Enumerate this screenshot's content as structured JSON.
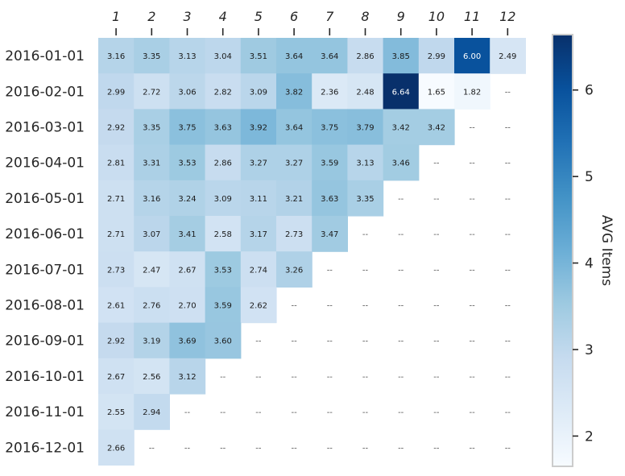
{
  "chart_data": {
    "type": "heatmap",
    "x_categories": [
      "1",
      "2",
      "3",
      "4",
      "5",
      "6",
      "7",
      "8",
      "9",
      "10",
      "11",
      "12"
    ],
    "y_categories": [
      "2016-01-01",
      "2016-02-01",
      "2016-03-01",
      "2016-04-01",
      "2016-05-01",
      "2016-06-01",
      "2016-07-01",
      "2016-08-01",
      "2016-09-01",
      "2016-10-01",
      "2016-11-01",
      "2016-12-01"
    ],
    "values": [
      [
        3.16,
        3.35,
        3.13,
        3.04,
        3.51,
        3.64,
        3.64,
        2.86,
        3.85,
        2.99,
        6.0,
        2.49
      ],
      [
        2.99,
        2.72,
        3.06,
        2.82,
        3.09,
        3.82,
        2.36,
        2.48,
        6.64,
        1.65,
        1.82,
        null
      ],
      [
        2.92,
        3.35,
        3.75,
        3.63,
        3.92,
        3.64,
        3.75,
        3.79,
        3.42,
        3.42,
        null,
        null
      ],
      [
        2.81,
        3.31,
        3.53,
        2.86,
        3.27,
        3.27,
        3.59,
        3.13,
        3.46,
        null,
        null,
        null
      ],
      [
        2.71,
        3.16,
        3.24,
        3.09,
        3.11,
        3.21,
        3.63,
        3.35,
        null,
        null,
        null,
        null
      ],
      [
        2.71,
        3.07,
        3.41,
        2.58,
        3.17,
        2.73,
        3.47,
        null,
        null,
        null,
        null,
        null
      ],
      [
        2.73,
        2.47,
        2.67,
        3.53,
        2.74,
        3.26,
        null,
        null,
        null,
        null,
        null,
        null
      ],
      [
        2.61,
        2.76,
        2.7,
        3.59,
        2.62,
        null,
        null,
        null,
        null,
        null,
        null,
        null
      ],
      [
        2.92,
        3.19,
        3.69,
        3.6,
        null,
        null,
        null,
        null,
        null,
        null,
        null,
        null
      ],
      [
        2.67,
        2.56,
        3.12,
        null,
        null,
        null,
        null,
        null,
        null,
        null,
        null,
        null
      ],
      [
        2.55,
        2.94,
        null,
        null,
        null,
        null,
        null,
        null,
        null,
        null,
        null,
        null
      ],
      [
        2.66,
        null,
        null,
        null,
        null,
        null,
        null,
        null,
        null,
        null,
        null,
        null
      ]
    ],
    "missing_label": "--",
    "value_format": "2 decimals",
    "colorbar": {
      "label": "AVG Items",
      "range": [
        1.65,
        6.64
      ],
      "ticks": [
        2,
        3,
        4,
        5,
        6
      ],
      "colormap": "Blues",
      "placement": "right"
    },
    "colors": {
      "low": "#f7fbff",
      "high": "#08306b",
      "text_dark": "#1a1a1a",
      "text_light": "#ffffff",
      "missing_text": "#555555"
    }
  }
}
